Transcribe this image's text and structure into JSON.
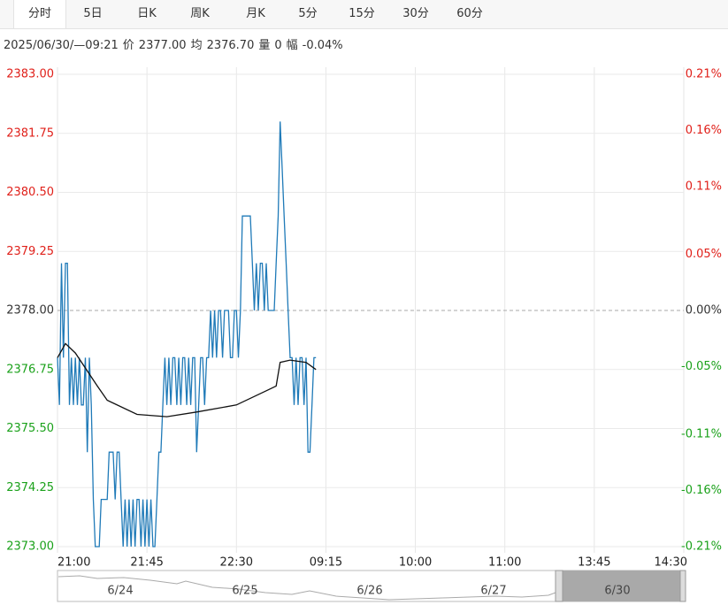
{
  "tabs": [
    "分时",
    "5日",
    "日K",
    "周K",
    "月K",
    "5分",
    "15分",
    "30分",
    "60分"
  ],
  "info": [
    "2025/06/30/—09:21",
    "价",
    "2377.00",
    "均",
    "2376.70",
    "量",
    "0",
    "幅",
    "-0.04%"
  ],
  "chart_data": {
    "type": "line",
    "up_color": "#e0201a",
    "down_color": "#1aa11a",
    "base_color": "#333333",
    "grid": true,
    "xlim": [
      0,
      315
    ],
    "xticks": [
      {
        "value": 0,
        "label": "21:00"
      },
      {
        "value": 45,
        "label": "21:45"
      },
      {
        "value": 90,
        "label": "22:30"
      },
      {
        "value": 135,
        "label": "09:15"
      },
      {
        "value": 180,
        "label": "10:00"
      },
      {
        "value": 225,
        "label": "11:00"
      },
      {
        "value": 270,
        "label": "13:45"
      },
      {
        "value": 315,
        "label": "14:30"
      }
    ],
    "ylim": [
      2373,
      2383
    ],
    "yticks": [
      {
        "value": 2383,
        "label": "2383.00"
      },
      {
        "value": 2381.75,
        "label": "2381.75"
      },
      {
        "value": 2380.5,
        "label": "2380.50"
      },
      {
        "value": 2379.25,
        "label": "2379.25"
      },
      {
        "value": 2378,
        "label": "2378.00"
      },
      {
        "value": 2376.75,
        "label": "2376.75"
      },
      {
        "value": 2375.5,
        "label": "2375.50"
      },
      {
        "value": 2374.25,
        "label": "2374.25"
      },
      {
        "value": 2373,
        "label": "2373.00"
      }
    ],
    "y2lim": [
      -0.21,
      0.21
    ],
    "y2ticks": [
      {
        "value": 0.21,
        "label": "0.21%"
      },
      {
        "value": 0.16,
        "label": "0.16%"
      },
      {
        "value": 0.11,
        "label": "0.11%"
      },
      {
        "value": 0.05,
        "label": "0.05%"
      },
      {
        "value": 0,
        "label": "0.00%"
      },
      {
        "value": -0.05,
        "label": "-0.05%"
      },
      {
        "value": -0.11,
        "label": "-0.11%"
      },
      {
        "value": -0.16,
        "label": "-0.16%"
      },
      {
        "value": -0.21,
        "label": "-0.21%"
      }
    ],
    "series": [
      {
        "color": "#1f7ab8",
        "values": [
          2377,
          2376,
          2379,
          2377,
          2379,
          2379,
          2376,
          2377,
          2376,
          2377,
          2376,
          2377,
          2376,
          2376,
          2377,
          2375,
          2377,
          2376,
          2374,
          2373,
          2373,
          2373,
          2374,
          2374,
          2374,
          2374,
          2375,
          2375,
          2375,
          2374,
          2375,
          2375,
          2374,
          2373,
          2374,
          2373,
          2374,
          2373,
          2374,
          2373,
          2374,
          2374,
          2373,
          2374,
          2373,
          2374,
          2373,
          2374,
          2373,
          2373,
          2374,
          2375,
          2375,
          2376,
          2377,
          2376,
          2377,
          2376,
          2377,
          2377,
          2376,
          2377,
          2376,
          2377,
          2377,
          2376,
          2377,
          2376,
          2377,
          2377,
          2375,
          2376,
          2377,
          2377,
          2376,
          2377,
          2377,
          2378,
          2377,
          2378,
          2377,
          2378,
          2378,
          2377,
          2378,
          2378,
          2378,
          2377,
          2377,
          2378,
          2378,
          2377,
          2378,
          2380,
          2380,
          2380,
          2380,
          2380,
          2379,
          2378,
          2379,
          2378,
          2379,
          2379,
          2378,
          2379,
          2378,
          2378,
          2378,
          2378,
          2379,
          2380,
          2382,
          2381,
          2380,
          2379,
          2378,
          2377,
          2377,
          2376,
          2377,
          2376,
          2377,
          2377,
          2376,
          2377,
          2375,
          2375,
          2376,
          2377,
          2377
        ]
      },
      {
        "color": "#111111",
        "x": [
          0,
          4,
          9,
          20,
          25,
          40,
          55,
          70,
          90,
          105,
          110,
          112,
          117,
          125,
          130
        ],
        "values": [
          2377.0,
          2377.3,
          2377.1,
          2376.4,
          2376.1,
          2375.8,
          2375.75,
          2375.85,
          2376.0,
          2376.3,
          2376.4,
          2376.9,
          2376.95,
          2376.9,
          2376.75
        ]
      }
    ]
  },
  "navigator": {
    "labels": [
      "6/24",
      "6/25",
      "6/26",
      "6/27",
      "6/30"
    ]
  }
}
